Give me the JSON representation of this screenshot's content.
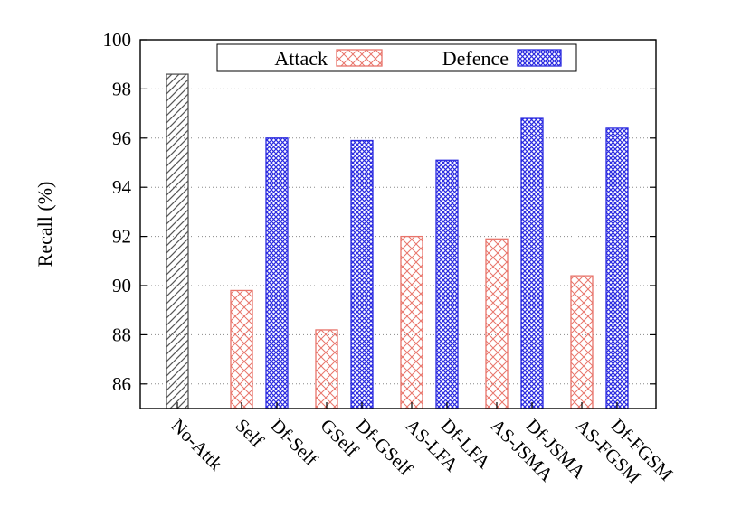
{
  "chart_data": {
    "type": "bar",
    "title": "",
    "xlabel": "",
    "ylabel": "Recall (%)",
    "ylim": [
      85,
      100
    ],
    "yticks": [
      86,
      88,
      90,
      92,
      94,
      96,
      98,
      100
    ],
    "grid": true,
    "legend_position": "top",
    "categories": [
      "No-Attk",
      "Self",
      "Df-Self",
      "GSelf",
      "Df-GSelf",
      "AS-LFA",
      "Df-LFA",
      "AS-JSMA",
      "Df-JSMA",
      "AS-FGSM",
      "Df-FGSM"
    ],
    "values": [
      98.6,
      89.8,
      96.0,
      88.2,
      95.9,
      92.0,
      95.1,
      91.9,
      96.8,
      90.4,
      96.4
    ],
    "bar_series": [
      "none",
      "Attack",
      "Defence",
      "Attack",
      "Defence",
      "Attack",
      "Defence",
      "Attack",
      "Defence",
      "Attack",
      "Defence"
    ],
    "series": [
      {
        "name": "Attack",
        "color": "#e8746a"
      },
      {
        "name": "Defence",
        "color": "#2a2ae0"
      }
    ],
    "baseline_color": "#555555"
  }
}
